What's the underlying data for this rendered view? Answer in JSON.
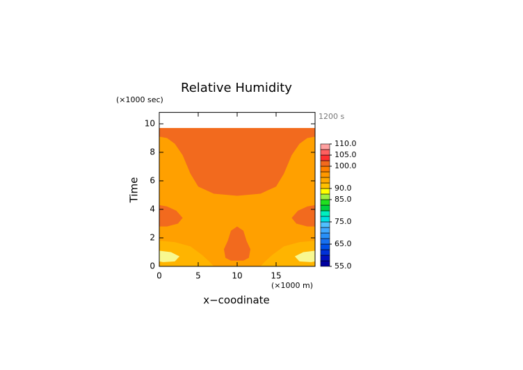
{
  "chart_data": {
    "type": "contour",
    "title": "Relative Humidity",
    "x_label": "x−coodinate",
    "y_label": "Time",
    "x_unit": "(×1000 m)",
    "y_unit": "(×1000 sec)",
    "annotation": "1200 s",
    "xlim": [
      0,
      20
    ],
    "ylim": [
      0,
      10.8
    ],
    "xticks": [
      0,
      5,
      10,
      15
    ],
    "yticks": [
      0,
      2,
      4,
      6,
      8,
      10
    ],
    "contours": [
      {
        "level": 95,
        "color": "#ffa000",
        "points": [
          [
            0,
            0
          ],
          [
            20,
            0
          ],
          [
            20,
            9.7
          ],
          [
            0,
            9.7
          ]
        ]
      },
      {
        "level": 100,
        "color": "#f26a1e",
        "points": [
          [
            0,
            9.7
          ],
          [
            20,
            9.7
          ],
          [
            20,
            9.1
          ],
          [
            19,
            9.0
          ],
          [
            18,
            8.6
          ],
          [
            17,
            7.8
          ],
          [
            16,
            6.5
          ],
          [
            15,
            5.6
          ],
          [
            13,
            5.1
          ],
          [
            10,
            4.95
          ],
          [
            7,
            5.1
          ],
          [
            5,
            5.6
          ],
          [
            4,
            6.5
          ],
          [
            3,
            7.8
          ],
          [
            2,
            8.6
          ],
          [
            1,
            9.0
          ],
          [
            0,
            9.1
          ]
        ]
      },
      {
        "level": 100,
        "color": "#f26a1e",
        "points": [
          [
            0,
            4.3
          ],
          [
            1,
            4.2
          ],
          [
            2.2,
            3.9
          ],
          [
            3,
            3.4
          ],
          [
            2.4,
            3.0
          ],
          [
            1,
            2.8
          ],
          [
            0,
            2.8
          ]
        ]
      },
      {
        "level": 100,
        "color": "#f26a1e",
        "points": [
          [
            20,
            4.3
          ],
          [
            19,
            4.2
          ],
          [
            17.8,
            3.9
          ],
          [
            17,
            3.4
          ],
          [
            17.6,
            3.0
          ],
          [
            19,
            2.8
          ],
          [
            20,
            2.8
          ]
        ]
      },
      {
        "level": 100,
        "color": "#f26a1e",
        "points": [
          [
            10,
            2.8
          ],
          [
            10.8,
            2.5
          ],
          [
            11.2,
            1.8
          ],
          [
            11.7,
            1.2
          ],
          [
            11.5,
            0.6
          ],
          [
            10.8,
            0.4
          ],
          [
            9.2,
            0.4
          ],
          [
            8.5,
            0.6
          ],
          [
            8.3,
            1.2
          ],
          [
            8.8,
            1.8
          ],
          [
            9.2,
            2.5
          ]
        ]
      },
      {
        "level": 92.5,
        "color": "#ffb400",
        "points": [
          [
            0,
            1.8
          ],
          [
            2,
            1.7
          ],
          [
            4,
            1.4
          ],
          [
            5.5,
            0.8
          ],
          [
            6.5,
            0.3
          ],
          [
            7,
            0
          ],
          [
            0,
            0
          ]
        ]
      },
      {
        "level": 92.5,
        "color": "#ffb400",
        "points": [
          [
            20,
            1.8
          ],
          [
            18,
            1.7
          ],
          [
            16,
            1.4
          ],
          [
            14.5,
            0.8
          ],
          [
            13.5,
            0.3
          ],
          [
            13,
            0
          ],
          [
            20,
            0
          ]
        ]
      },
      {
        "level": 87.5,
        "color": "#f8f890",
        "points": [
          [
            0,
            1.1
          ],
          [
            1.5,
            1.0
          ],
          [
            2.6,
            0.7
          ],
          [
            2,
            0.35
          ],
          [
            0.5,
            0.3
          ],
          [
            0,
            0.35
          ]
        ]
      },
      {
        "level": 87.5,
        "color": "#f8f890",
        "points": [
          [
            20,
            1.1
          ],
          [
            18.5,
            1.0
          ],
          [
            17.4,
            0.7
          ],
          [
            18,
            0.35
          ],
          [
            19.5,
            0.3
          ],
          [
            20,
            0.35
          ]
        ]
      }
    ],
    "colorbar": {
      "bounds": [
        55,
        57.5,
        60,
        62.5,
        65,
        67.5,
        70,
        72.5,
        75,
        77.5,
        80,
        82.5,
        85,
        87.5,
        90,
        92.5,
        95,
        97.5,
        100,
        102.5,
        105,
        107.5,
        110
      ],
      "colors": [
        "#0000a0",
        "#0010c0",
        "#0030d8",
        "#0050e8",
        "#1870f0",
        "#2890f8",
        "#40a8ff",
        "#50c0ff",
        "#00e0e0",
        "#00f0c0",
        "#00d040",
        "#20e020",
        "#a0f040",
        "#ffff00",
        "#ffc000",
        "#ffa800",
        "#ff9800",
        "#ff8000",
        "#f26a1e",
        "#ff3030",
        "#ff6060",
        "#ffa0a0"
      ],
      "ticks": [
        {
          "value": 110,
          "label": "110.0"
        },
        {
          "value": 105,
          "label": "105.0"
        },
        {
          "value": 100,
          "label": "100.0"
        },
        {
          "value": 90,
          "label": "90.0"
        },
        {
          "value": 85,
          "label": "85.0"
        },
        {
          "value": 75,
          "label": "75.0"
        },
        {
          "value": 65,
          "label": "65.0"
        },
        {
          "value": 55,
          "label": "55.0"
        }
      ]
    }
  }
}
